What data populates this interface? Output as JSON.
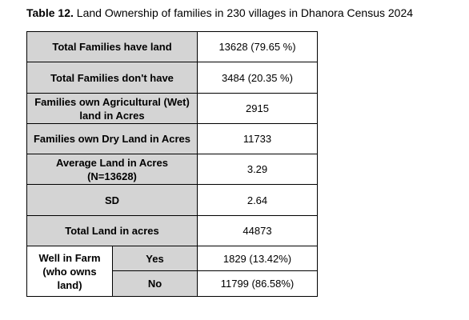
{
  "caption": {
    "label": "Table 12.",
    "text": "Land Ownership of families in 230 villages in Dhanora Census 2024"
  },
  "table": {
    "rows": [
      {
        "label": "Total Families have land",
        "value": "13628 (79.65 %)"
      },
      {
        "label": "Total Families don't have",
        "value": "3484 (20.35 %)"
      },
      {
        "label": "Families own Agricultural (Wet) land in Acres",
        "value": "2915"
      },
      {
        "label": "Families own Dry Land in Acres",
        "value": "11733"
      },
      {
        "label": "Average Land in Acres (N=13628)",
        "value": "3.29"
      },
      {
        "label": "SD",
        "value": "2.64"
      },
      {
        "label": "Total Land in acres",
        "value": "44873"
      }
    ],
    "well": {
      "label": "Well in Farm (who owns land)",
      "yes_label": "Yes",
      "yes_value": "1829 (13.42%)",
      "no_label": "No",
      "no_value": "11799 (86.58%)"
    }
  }
}
